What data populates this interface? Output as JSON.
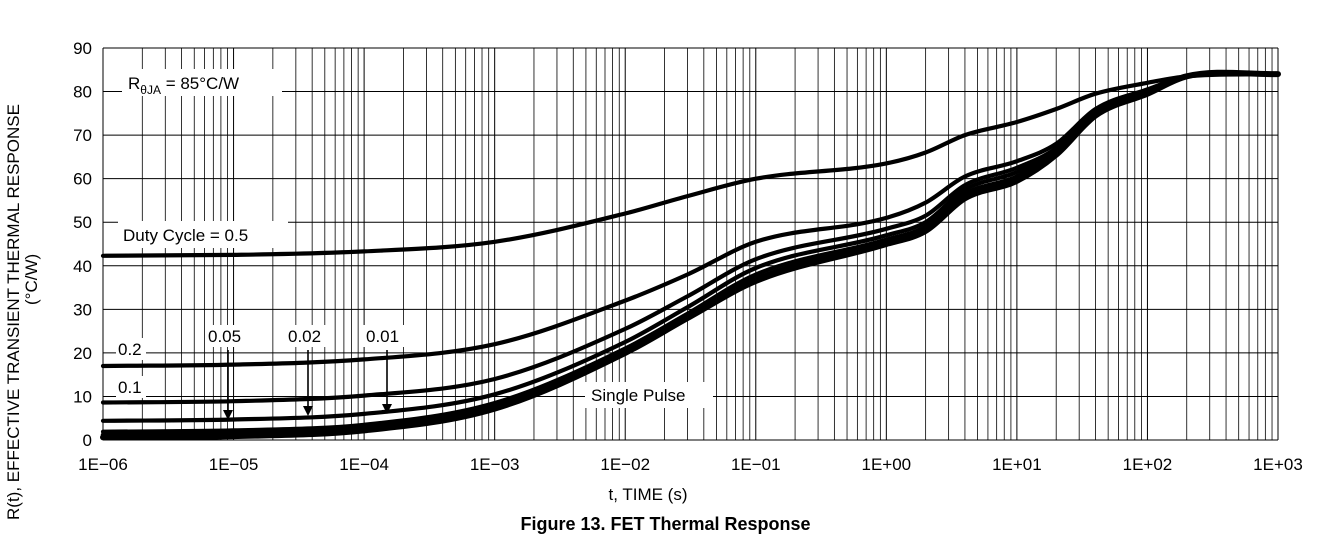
{
  "chart_data": {
    "type": "line",
    "title": "Figure 13. FET Thermal Response",
    "xlabel": "t, TIME (s)",
    "ylabel": "R(t), EFFECTIVE TRANSIENT THERMAL RESPONSE",
    "ylabel_unit": "(°C/W)",
    "xscale": "log",
    "xlim": [
      1e-06,
      1000.0
    ],
    "ylim": [
      0,
      90
    ],
    "grid": true,
    "xtick_labels": [
      "1E−06",
      "1E−05",
      "1E−04",
      "1E−03",
      "1E−02",
      "1E−01",
      "1E+00",
      "1E+01",
      "1E+02",
      "1E+03"
    ],
    "yticks": [
      0,
      10,
      20,
      30,
      40,
      50,
      60,
      70,
      80,
      90
    ],
    "x": [
      1e-06,
      1e-05,
      0.0001,
      0.001,
      0.01,
      0.03,
      0.1,
      1,
      2,
      4,
      10,
      20,
      40,
      100,
      200,
      1000
    ],
    "series": [
      {
        "name": "Duty Cycle = 0.5",
        "values": [
          42.3,
          42.5,
          43.3,
          45.5,
          52.0,
          56.0,
          60.0,
          63.5,
          66.0,
          70.0,
          73.0,
          76.0,
          79.5,
          82.0,
          83.5,
          84.0
        ]
      },
      {
        "name": "0.2",
        "values": [
          17.0,
          17.3,
          18.5,
          22.0,
          32.0,
          38.0,
          45.5,
          51.0,
          54.5,
          60.5,
          64.0,
          68.0,
          76.0,
          80.5,
          83.5,
          84.0
        ]
      },
      {
        "name": "0.1",
        "values": [
          8.6,
          8.9,
          10.2,
          14.0,
          25.5,
          33.0,
          41.5,
          48.5,
          51.5,
          58.5,
          62.5,
          67.0,
          75.5,
          80.0,
          83.5,
          84.0
        ]
      },
      {
        "name": "0.05",
        "values": [
          4.4,
          4.7,
          6.0,
          10.5,
          22.5,
          30.5,
          39.5,
          47.0,
          50.0,
          57.5,
          61.5,
          66.5,
          75.0,
          80.0,
          83.5,
          84.0
        ]
      },
      {
        "name": "0.02",
        "values": [
          1.9,
          2.2,
          3.5,
          8.5,
          21.0,
          29.0,
          38.0,
          46.0,
          49.0,
          56.5,
          60.5,
          66.0,
          74.5,
          79.5,
          83.5,
          84.0
        ]
      },
      {
        "name": "0.01",
        "values": [
          1.2,
          1.5,
          2.8,
          7.8,
          20.5,
          28.5,
          37.0,
          45.5,
          48.5,
          56.0,
          60.0,
          65.5,
          74.5,
          79.5,
          83.5,
          84.0
        ]
      },
      {
        "name": "Single Pulse",
        "values": [
          0.6,
          0.9,
          2.2,
          7.2,
          20.0,
          28.0,
          36.5,
          45.0,
          48.0,
          55.5,
          59.5,
          65.5,
          74.5,
          79.5,
          83.5,
          84.0
        ]
      }
    ],
    "annotations": {
      "rtheta_prefix": "R",
      "rtheta_sub": "θJA",
      "rtheta_value": " = 85°C/W",
      "duty_cycle_label": "Duty Cycle = 0.5",
      "label_02": "0.2",
      "label_01": "0.1",
      "label_005": "0.05",
      "label_002": "0.02",
      "label_001": "0.01",
      "single_pulse": "Single Pulse"
    }
  }
}
